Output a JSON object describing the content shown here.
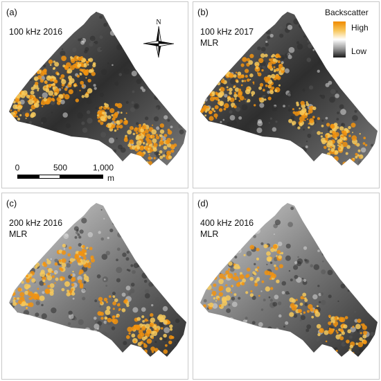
{
  "panels": [
    {
      "letter": "(a)",
      "lines": [
        "100 kHz 2016",
        ""
      ]
    },
    {
      "letter": "(b)",
      "lines": [
        "100 kHz 2017",
        "MLR"
      ]
    },
    {
      "letter": "(c)",
      "lines": [
        "200 kHz 2016",
        "MLR"
      ]
    },
    {
      "letter": "(d)",
      "lines": [
        "400 kHz 2016",
        "MLR"
      ]
    }
  ],
  "north_arrow": {
    "label": "N"
  },
  "legend": {
    "title": "Backscatter",
    "high": "High",
    "low": "Low",
    "colors": [
      "#f08a00",
      "#f7c65a",
      "#ffffff",
      "#9a9a9a",
      "#1a1a1a"
    ]
  },
  "scale_bar": {
    "ticks": [
      "0",
      "500",
      "1,000"
    ],
    "unit": "m"
  },
  "colors": {
    "dark": "#2e2e2e",
    "mid": "#7a7a7a",
    "light": "#d9d9d9",
    "orange": "#f2930f",
    "yellow": "#f6c95c"
  }
}
